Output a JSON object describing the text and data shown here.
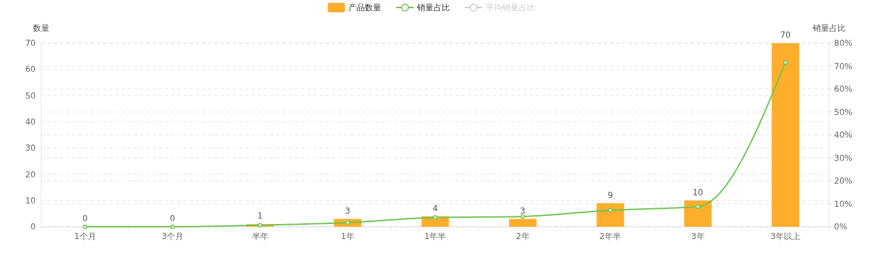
{
  "chart_data": {
    "type": "bar",
    "categories": [
      "1个月",
      "3个月",
      "半年",
      "1年",
      "1年半",
      "2年",
      "2年半",
      "3年",
      "3年以上"
    ],
    "ylabel": "数量",
    "y2label": "销量占比",
    "series": [
      {
        "name": "产品数量",
        "color": "#ffae2c",
        "values": [
          0,
          0,
          1,
          3,
          4,
          3,
          9,
          10,
          70
        ],
        "value_labels": [
          "0",
          "0",
          "1",
          "3",
          "4",
          "3",
          "9",
          "10",
          "70"
        ]
      },
      {
        "name": "销量占比",
        "type": "line",
        "axis": "y2",
        "color": "#6cc551",
        "marker": "circle",
        "values": [
          0,
          0,
          0.7,
          1.8,
          4.0,
          4.5,
          7.2,
          8.7,
          71.6
        ]
      },
      {
        "name": "平均销量占比",
        "type": "line",
        "axis": "y2",
        "color": "#cccccc",
        "marker": "circle",
        "values": [
          null,
          null,
          null,
          null,
          null,
          null,
          null,
          null,
          null
        ]
      }
    ],
    "ylim": [
      0,
      70
    ],
    "yticks": [
      0,
      10,
      20,
      30,
      40,
      50,
      60,
      70
    ],
    "y2lim": [
      0,
      80
    ],
    "y2ticks": [
      {
        "value": 0,
        "label": "0%"
      },
      {
        "value": 10,
        "label": "10%"
      },
      {
        "value": 20,
        "label": "20%"
      },
      {
        "value": 30,
        "label": "30%"
      },
      {
        "value": 40,
        "label": "40%"
      },
      {
        "value": 50,
        "label": "50%"
      },
      {
        "value": 60,
        "label": "60%"
      },
      {
        "value": 70,
        "label": "70%"
      },
      {
        "value": 80,
        "label": "80%"
      }
    ],
    "grid": true,
    "legend": "top"
  }
}
